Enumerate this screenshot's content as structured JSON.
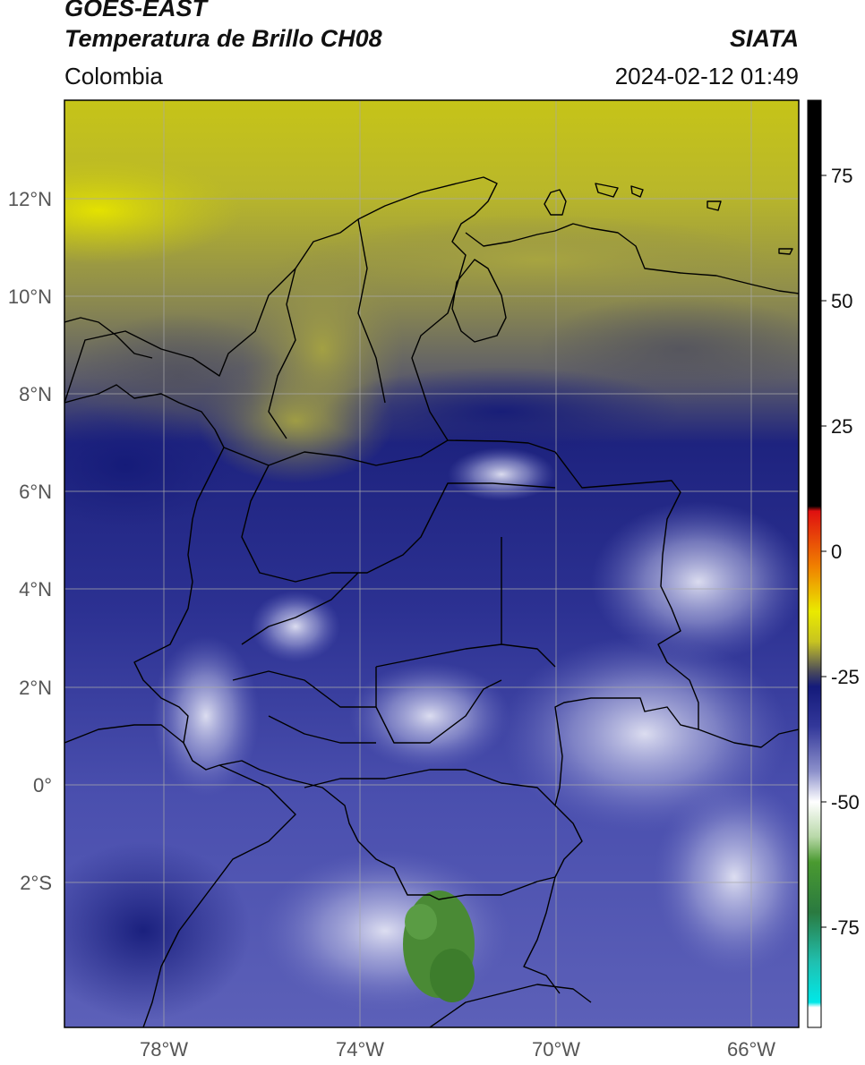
{
  "header": {
    "satellite": "GOES-EAST",
    "product": "Temperatura de Brillo CH08",
    "agency": "SIATA",
    "region": "Colombia",
    "datetime": "2024-02-12 01:49"
  },
  "map": {
    "lat_labels": [
      "12°N",
      "10°N",
      "8°N",
      "6°N",
      "4°N",
      "2°N",
      "0°",
      "2°S"
    ],
    "lon_labels": [
      "78°W",
      "74°W",
      "70°W",
      "66°W"
    ],
    "colors": {
      "yellow": "#c9c714",
      "olive": "#8f8c4c",
      "gray_mid": "#5e5e66",
      "navy": "#1c217e",
      "blue_mid": "#3a3f9e",
      "blue_light": "#7d81c4",
      "pale": "#c9cbe8",
      "green": "#3f8e2c",
      "border": "#000000",
      "grid": "#9a9a9a"
    }
  },
  "colorbar": {
    "tick_labels": [
      "75",
      "50",
      "25",
      "0",
      "-25",
      "-50",
      "-75"
    ],
    "range": [
      -95,
      90
    ],
    "stops": [
      {
        "value": 90,
        "color": "#000000"
      },
      {
        "value": 9,
        "color": "#000000"
      },
      {
        "value": 8,
        "color": "#e01010"
      },
      {
        "value": -3,
        "color": "#f08000"
      },
      {
        "value": -12,
        "color": "#eaea00"
      },
      {
        "value": -18,
        "color": "#c8c420"
      },
      {
        "value": -21,
        "color": "#8a8840"
      },
      {
        "value": -24,
        "color": "#4a4a5a"
      },
      {
        "value": -27,
        "color": "#141a7a"
      },
      {
        "value": -35,
        "color": "#33389a"
      },
      {
        "value": -44,
        "color": "#8e92cc"
      },
      {
        "value": -50,
        "color": "#ffffff"
      },
      {
        "value": -57,
        "color": "#b8d8a8"
      },
      {
        "value": -62,
        "color": "#4a9a30"
      },
      {
        "value": -72,
        "color": "#2a7a40"
      },
      {
        "value": -82,
        "color": "#20c0b0"
      },
      {
        "value": -90,
        "color": "#00e8e8"
      },
      {
        "value": -91,
        "color": "#ffffff"
      },
      {
        "value": -95,
        "color": "#ffffff"
      }
    ]
  }
}
